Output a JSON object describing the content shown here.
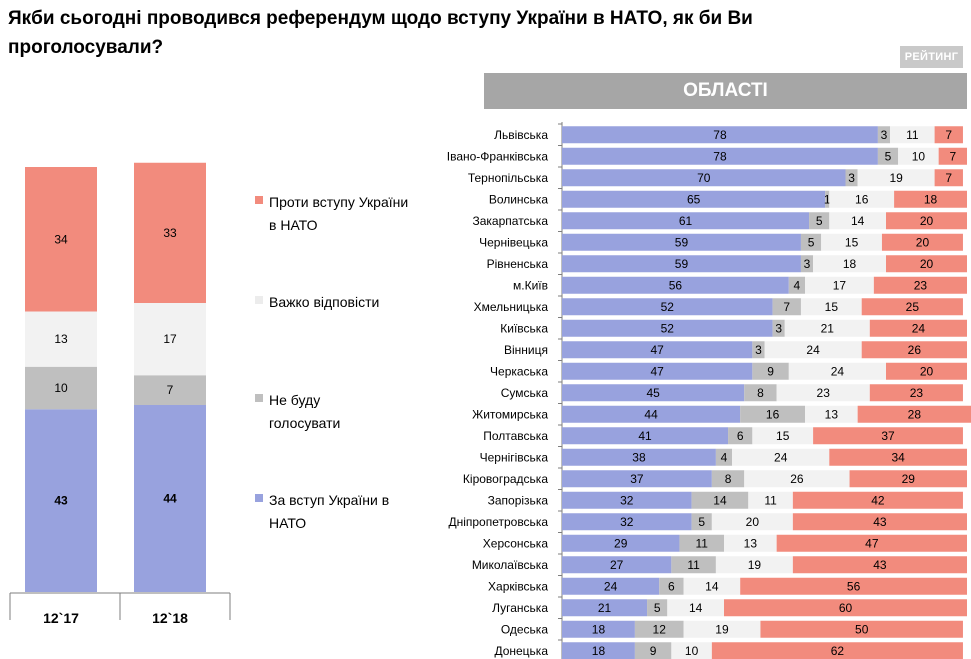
{
  "title": "Якби сьогодні проводився референдум щодо вступу України в НАТО, як би Ви проголосували?",
  "brand": "РЕЙТИНГ",
  "regions_header": "ОБЛАСТІ",
  "colors": {
    "for": "#98a2de",
    "wont_vote": "#bfbfbf",
    "hard_to_say": "#f2f2f2",
    "against": "#f28b7d"
  },
  "legend": [
    {
      "key": "against",
      "label": "Проти вступу України в НАТО"
    },
    {
      "key": "hard_to_say",
      "label": "Важко відповісти"
    },
    {
      "key": "wont_vote",
      "label": "Не буду голосувати"
    },
    {
      "key": "for",
      "label": "За вступ України в НАТО"
    }
  ],
  "chart_data": [
    {
      "type": "bar",
      "stacked": true,
      "orientation": "vertical",
      "categories": [
        "12`17",
        "12`18"
      ],
      "series": [
        {
          "name": "За вступ України в НАТО",
          "key": "for",
          "values": [
            43,
            44
          ]
        },
        {
          "name": "Не буду голосувати",
          "key": "wont_vote",
          "values": [
            10,
            7
          ]
        },
        {
          "name": "Важко відповісти",
          "key": "hard_to_say",
          "values": [
            13,
            17
          ]
        },
        {
          "name": "Проти вступу України в НАТО",
          "key": "against",
          "values": [
            34,
            33
          ]
        }
      ],
      "ylim": [
        0,
        100
      ]
    },
    {
      "type": "bar",
      "stacked": true,
      "orientation": "horizontal",
      "title": "ОБЛАСТІ",
      "categories": [
        "Львівська",
        "Івано-Франківська",
        "Тернопільська",
        "Волинська",
        "Закарпатська",
        "Чернівецька",
        "Рівненська",
        "м.Київ",
        "Хмельницька",
        "Київська",
        "Вінниця",
        "Черкаська",
        "Сумська",
        "Житомирська",
        "Полтавська",
        "Чернігівська",
        "Кіровоградська",
        "Запорізька",
        "Дніпропетровська",
        "Херсонська",
        "Миколаївська",
        "Харківська",
        "Луганська",
        "Одеська",
        "Донецька"
      ],
      "series": [
        {
          "name": "За вступ України в НАТО",
          "key": "for",
          "values": [
            78,
            78,
            70,
            65,
            61,
            59,
            59,
            56,
            52,
            52,
            47,
            47,
            45,
            44,
            41,
            38,
            37,
            32,
            32,
            29,
            27,
            24,
            21,
            18,
            18
          ]
        },
        {
          "name": "Не буду голосувати",
          "key": "wont_vote",
          "values": [
            3,
            5,
            3,
            1,
            5,
            5,
            3,
            4,
            7,
            3,
            3,
            9,
            8,
            16,
            6,
            4,
            8,
            14,
            5,
            11,
            11,
            6,
            5,
            12,
            9
          ]
        },
        {
          "name": "Важко відповісти",
          "key": "hard_to_say",
          "values": [
            11,
            10,
            19,
            16,
            14,
            15,
            18,
            17,
            15,
            21,
            24,
            24,
            23,
            13,
            15,
            24,
            26,
            11,
            20,
            13,
            19,
            14,
            14,
            19,
            10
          ]
        },
        {
          "name": "Проти вступу України в НАТО",
          "key": "against",
          "values": [
            7,
            7,
            7,
            18,
            20,
            20,
            20,
            23,
            25,
            24,
            26,
            20,
            23,
            28,
            37,
            34,
            29,
            42,
            43,
            47,
            43,
            56,
            60,
            50,
            62
          ]
        }
      ],
      "xlim": [
        0,
        100
      ]
    }
  ]
}
